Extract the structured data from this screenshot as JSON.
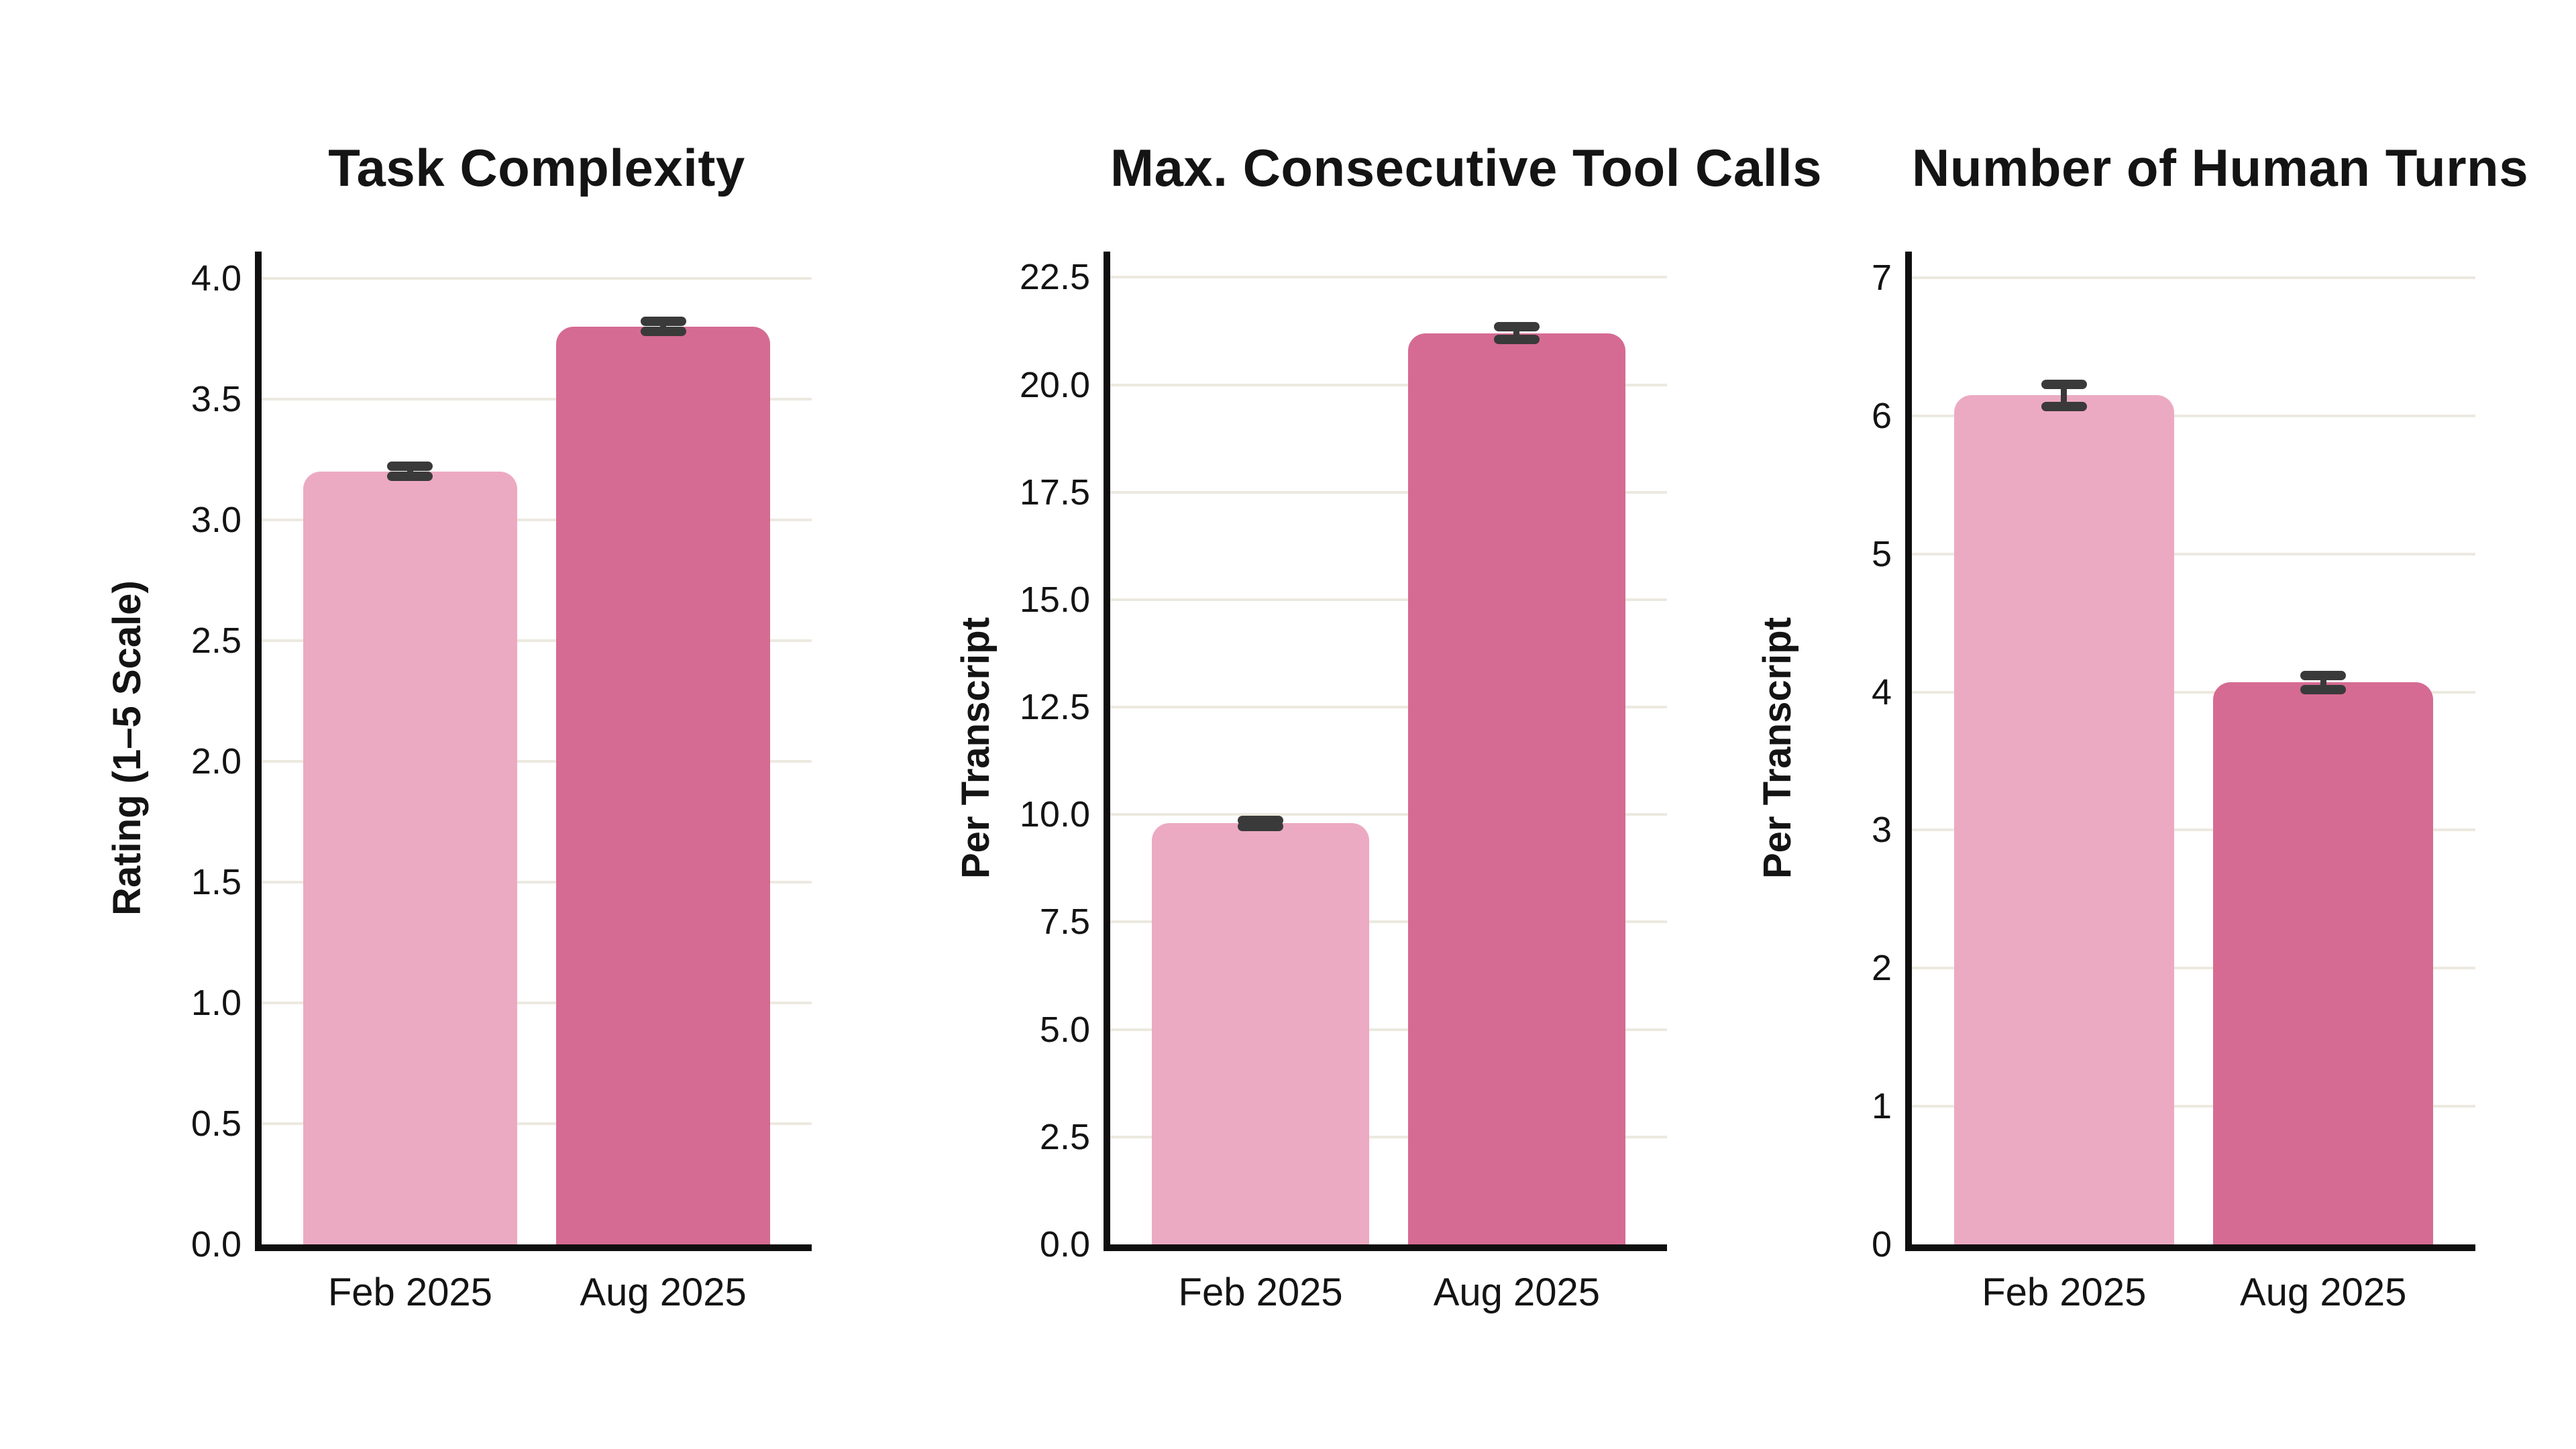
{
  "palette": {
    "background": "#FFFFFF",
    "bar_feb": "#ECAAC2",
    "bar_aug": "#D56B92",
    "error_bar": "#3A3A3A",
    "gridline": "#ECE9E0",
    "spine": "#0F0F0F",
    "text": "#141414"
  },
  "chart_data": [
    {
      "type": "bar",
      "title": "Task Complexity",
      "ylabel": "Rating (1–5 Scale)",
      "xlabel": "",
      "categories": [
        "Feb 2025",
        "Aug 2025"
      ],
      "values": [
        3.2,
        3.8
      ],
      "errors": [
        0.02,
        0.02
      ],
      "ylim": [
        0,
        4.11
      ],
      "yticks": [
        0.0,
        0.5,
        1.0,
        1.5,
        2.0,
        2.5,
        3.0,
        3.5,
        4.0
      ],
      "ytick_labels": [
        "0.0",
        "0.5",
        "1.0",
        "1.5",
        "2.0",
        "2.5",
        "3.0",
        "3.5",
        "4.0"
      ],
      "grid": true,
      "legend": "none",
      "bar_colors": [
        "#ECAAC2",
        "#D56B92"
      ]
    },
    {
      "type": "bar",
      "title": "Max. Consecutive Tool Calls",
      "ylabel": "Per Transcript",
      "xlabel": "",
      "categories": [
        "Feb 2025",
        "Aug 2025"
      ],
      "values": [
        9.8,
        21.2
      ],
      "errors": [
        0.07,
        0.15
      ],
      "ylim": [
        0,
        23.1
      ],
      "yticks": [
        0.0,
        2.5,
        5.0,
        7.5,
        10.0,
        12.5,
        15.0,
        17.5,
        20.0,
        22.5
      ],
      "ytick_labels": [
        "0.0",
        "2.5",
        "5.0",
        "7.5",
        "10.0",
        "12.5",
        "15.0",
        "17.5",
        "20.0",
        "22.5"
      ],
      "grid": true,
      "legend": "none",
      "bar_colors": [
        "#ECAAC2",
        "#D56B92"
      ]
    },
    {
      "type": "bar",
      "title": "Number of Human Turns",
      "ylabel": "Per Transcript",
      "xlabel": "",
      "categories": [
        "Feb 2025",
        "Aug 2025"
      ],
      "values": [
        6.15,
        4.07
      ],
      "errors": [
        0.08,
        0.05
      ],
      "ylim": [
        0,
        7.19
      ],
      "yticks": [
        0,
        1,
        2,
        3,
        4,
        5,
        6,
        7
      ],
      "ytick_labels": [
        "0",
        "1",
        "2",
        "3",
        "4",
        "5",
        "6",
        "7"
      ],
      "grid": true,
      "legend": "none",
      "bar_colors": [
        "#ECAAC2",
        "#D56B92"
      ]
    }
  ]
}
